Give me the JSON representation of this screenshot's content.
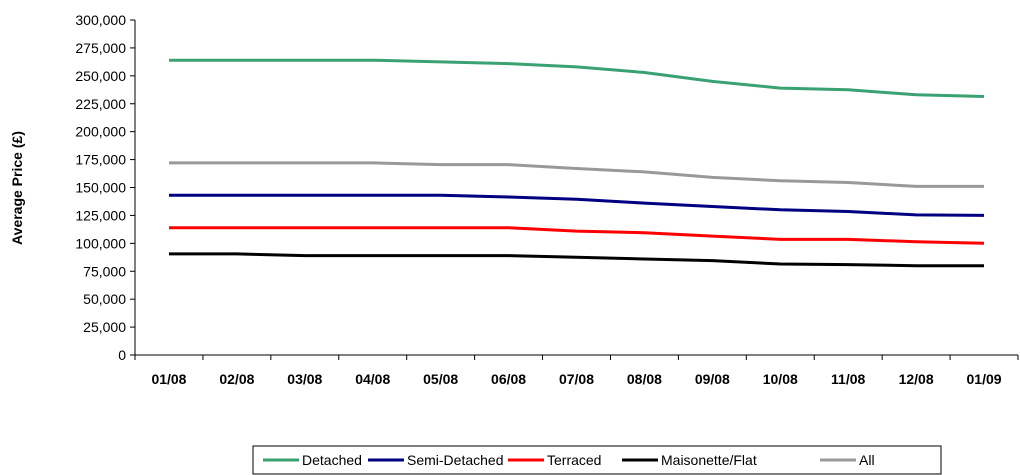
{
  "chart_data": {
    "type": "line",
    "ylabel": "Average Price (£)",
    "xlabel": "",
    "ylim": [
      0,
      300000
    ],
    "y_ticks": [
      "0",
      "25,000",
      "50,000",
      "75,000",
      "100,000",
      "125,000",
      "150,000",
      "175,000",
      "200,000",
      "225,000",
      "250,000",
      "275,000",
      "300,000"
    ],
    "y_tick_values": [
      0,
      25000,
      50000,
      75000,
      100000,
      125000,
      150000,
      175000,
      200000,
      225000,
      250000,
      275000,
      300000
    ],
    "categories": [
      "01/08",
      "02/08",
      "03/08",
      "04/08",
      "05/08",
      "06/08",
      "07/08",
      "08/08",
      "09/08",
      "10/08",
      "11/08",
      "12/08",
      "01/09"
    ],
    "grid": false,
    "legend_position": "bottom",
    "series": [
      {
        "name": "Detached",
        "color": "#3aa272",
        "values": [
          264000,
          264000,
          264000,
          264000,
          262500,
          261000,
          258000,
          253000,
          245000,
          239000,
          237500,
          233000,
          231500
        ]
      },
      {
        "name": "Semi-Detached",
        "color": "#000080",
        "values": [
          143000,
          143000,
          143000,
          143000,
          143000,
          141500,
          139500,
          136000,
          133000,
          130000,
          128500,
          125500,
          125000
        ]
      },
      {
        "name": "Terraced",
        "color": "#ff0000",
        "values": [
          114000,
          114000,
          114000,
          114000,
          114000,
          114000,
          111000,
          109500,
          106500,
          103500,
          103500,
          101500,
          100000
        ]
      },
      {
        "name": "Maisonette/Flat",
        "color": "#000000",
        "values": [
          90500,
          90500,
          89000,
          89000,
          89000,
          89000,
          87500,
          86000,
          84500,
          81500,
          81000,
          80000,
          80000
        ]
      },
      {
        "name": "All",
        "color": "#999999",
        "values": [
          172000,
          172000,
          172000,
          172000,
          170500,
          170500,
          167000,
          164000,
          159000,
          156000,
          154500,
          151000,
          151000
        ]
      }
    ]
  }
}
